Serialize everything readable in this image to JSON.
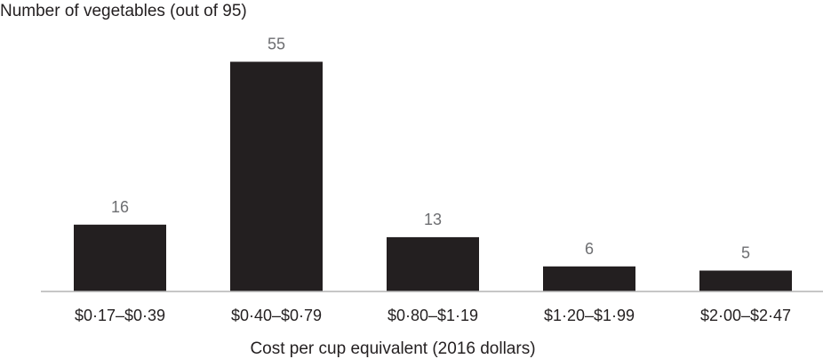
{
  "chart_data": {
    "type": "bar",
    "title": "",
    "ylabel": "Number of vegetables (out of 95)",
    "xlabel": "Cost per cup equivalent (2016 dollars)",
    "categories": [
      "$0·17–$0·39",
      "$0·40–$0·79",
      "$0·80–$1·19",
      "$1·20–$1·99",
      "$2·00–$2·47"
    ],
    "values": [
      16,
      55,
      13,
      6,
      5
    ],
    "ylim": [
      0,
      55
    ],
    "grid": false,
    "legend": "none",
    "colors": {
      "bar": "#231f20",
      "axis": "#b3b3b3",
      "data_label": "#6d6e71",
      "text": "#231f20"
    }
  }
}
